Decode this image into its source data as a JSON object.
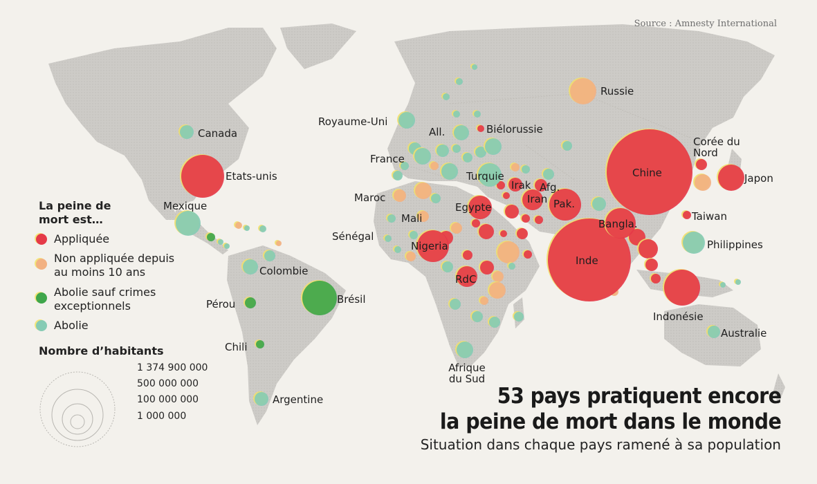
{
  "source": "Source : Amnesty International",
  "title_line1": "53 pays pratiquent encore",
  "title_line2": "la peine de mort dans le monde",
  "subtitle": "Situation dans chaque pays ramené à sa population",
  "colors": {
    "applied": "#e53a48",
    "not_applied": "#f2b182",
    "abolished_except": "#3fa64b",
    "abolished": "#86cbb4"
  },
  "legend": {
    "title": "La peine de mort est…",
    "items": [
      {
        "key": "applied",
        "label": "Appliquée"
      },
      {
        "key": "not_applied",
        "label": "Non appliquée depuis au moins 10 ans"
      },
      {
        "key": "abolished_except",
        "label": "Abolie sauf crimes exceptionnels"
      },
      {
        "key": "abolished",
        "label": "Abolie"
      }
    ],
    "size_title": "Nombre d’habitants",
    "sizes": [
      "1 374 900 000",
      "500 000 000",
      "100 000 000",
      "1 000 000"
    ]
  },
  "countries": [
    {
      "name": "Canada",
      "status": "abolished"
    },
    {
      "name": "Etats-unis",
      "status": "applied"
    },
    {
      "name": "Mexique",
      "status": "abolished"
    },
    {
      "name": "Colombie",
      "status": "abolished"
    },
    {
      "name": "Pérou",
      "status": "abolished_except"
    },
    {
      "name": "Brésil",
      "status": "abolished_except"
    },
    {
      "name": "Chili",
      "status": "abolished_except"
    },
    {
      "name": "Argentine",
      "status": "abolished"
    },
    {
      "name": "Royaume-Uni",
      "status": "abolished"
    },
    {
      "name": "France",
      "status": "abolished"
    },
    {
      "name": "All.",
      "status": "abolished"
    },
    {
      "name": "Biélorussie",
      "status": "applied"
    },
    {
      "name": "Russie",
      "status": "not_applied"
    },
    {
      "name": "Maroc",
      "status": "not_applied"
    },
    {
      "name": "Mali",
      "status": "not_applied"
    },
    {
      "name": "Sénégal",
      "status": "abolished"
    },
    {
      "name": "Nigeria",
      "status": "applied"
    },
    {
      "name": "RdC",
      "status": "applied"
    },
    {
      "name": "Egypte",
      "status": "applied"
    },
    {
      "name": "Turquie",
      "status": "abolished"
    },
    {
      "name": "Irak",
      "status": "applied"
    },
    {
      "name": "Afg.",
      "status": "applied"
    },
    {
      "name": "Iran",
      "status": "applied"
    },
    {
      "name": "Pak.",
      "status": "applied"
    },
    {
      "name": "Inde",
      "status": "applied"
    },
    {
      "name": "Bangla.",
      "status": "applied"
    },
    {
      "name": "Chine",
      "status": "applied"
    },
    {
      "name": "Corée du Nord",
      "status": "applied"
    },
    {
      "name": "Japon",
      "status": "applied"
    },
    {
      "name": "Taiwan",
      "status": "applied"
    },
    {
      "name": "Philippines",
      "status": "abolished"
    },
    {
      "name": "Indonésie",
      "status": "applied"
    },
    {
      "name": "Australie",
      "status": "abolished"
    },
    {
      "name": "Afrique du Sud",
      "status": "abolished"
    }
  ]
}
